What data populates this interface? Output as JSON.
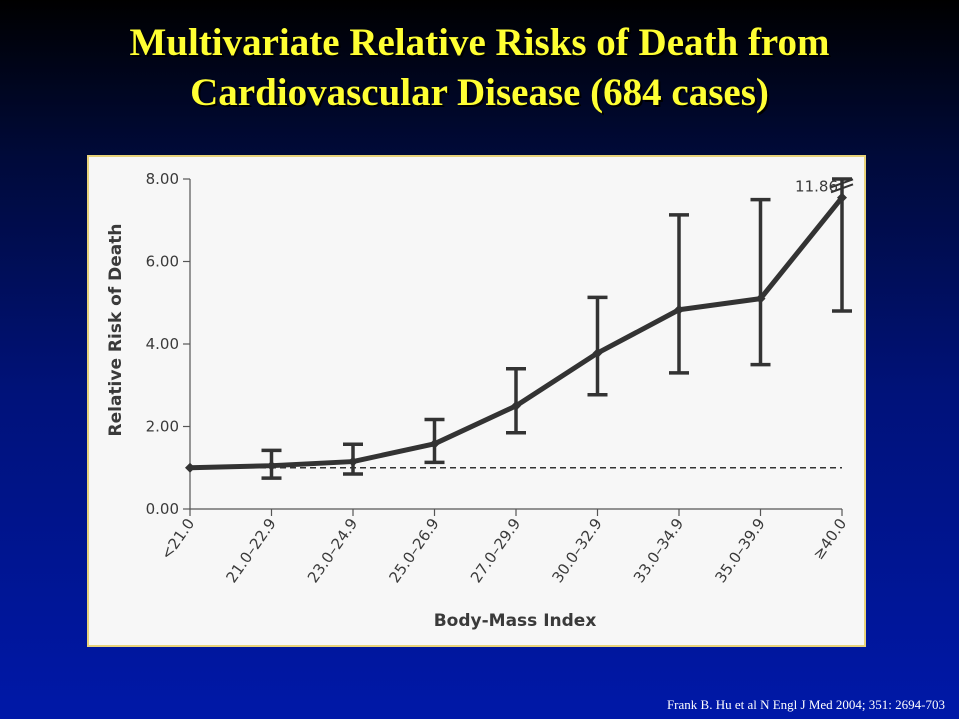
{
  "slide": {
    "title_line1": "Multivariate Relative Risks of Death from",
    "title_line2": "Cardiovascular Disease (684 cases)",
    "citation": "Frank B. Hu et al N Engl J Med 2004; 351: 2694-703"
  },
  "colors": {
    "title": "#ffff33",
    "background_top": "#000000",
    "background_bottom": "#0018a8",
    "panel": "#f7f7f7",
    "panel_border": "#e8d37a",
    "line": "#333333"
  },
  "chart_data": {
    "type": "line",
    "title": "",
    "xlabel": "Body-Mass Index",
    "ylabel": "Relative Risk of Death",
    "categories": [
      "<21.0",
      "21.0–22.9",
      "23.0–24.9",
      "25.0–26.9",
      "27.0–29.9",
      "30.0–32.9",
      "33.0–34.9",
      "35.0–39.9",
      "≥40.0"
    ],
    "series": [
      {
        "values": [
          1.0,
          1.05,
          1.15,
          1.58,
          2.5,
          3.78,
          4.83,
          5.1,
          11.86
        ],
        "ci_lower": [
          1.0,
          0.75,
          0.85,
          1.13,
          1.85,
          2.77,
          3.3,
          3.5,
          4.8
        ],
        "ci_upper": [
          1.0,
          1.42,
          1.57,
          2.17,
          3.4,
          5.13,
          7.13,
          7.5,
          8.0
        ]
      }
    ],
    "reference_line": 1.0,
    "annotation": "11.86",
    "ylim": [
      0,
      8
    ],
    "yticks": [
      "0.00",
      "2.00",
      "4.00",
      "6.00",
      "8.00"
    ],
    "ytick_values": [
      0,
      2,
      4,
      6,
      8
    ],
    "grid": false,
    "legend": "none"
  }
}
